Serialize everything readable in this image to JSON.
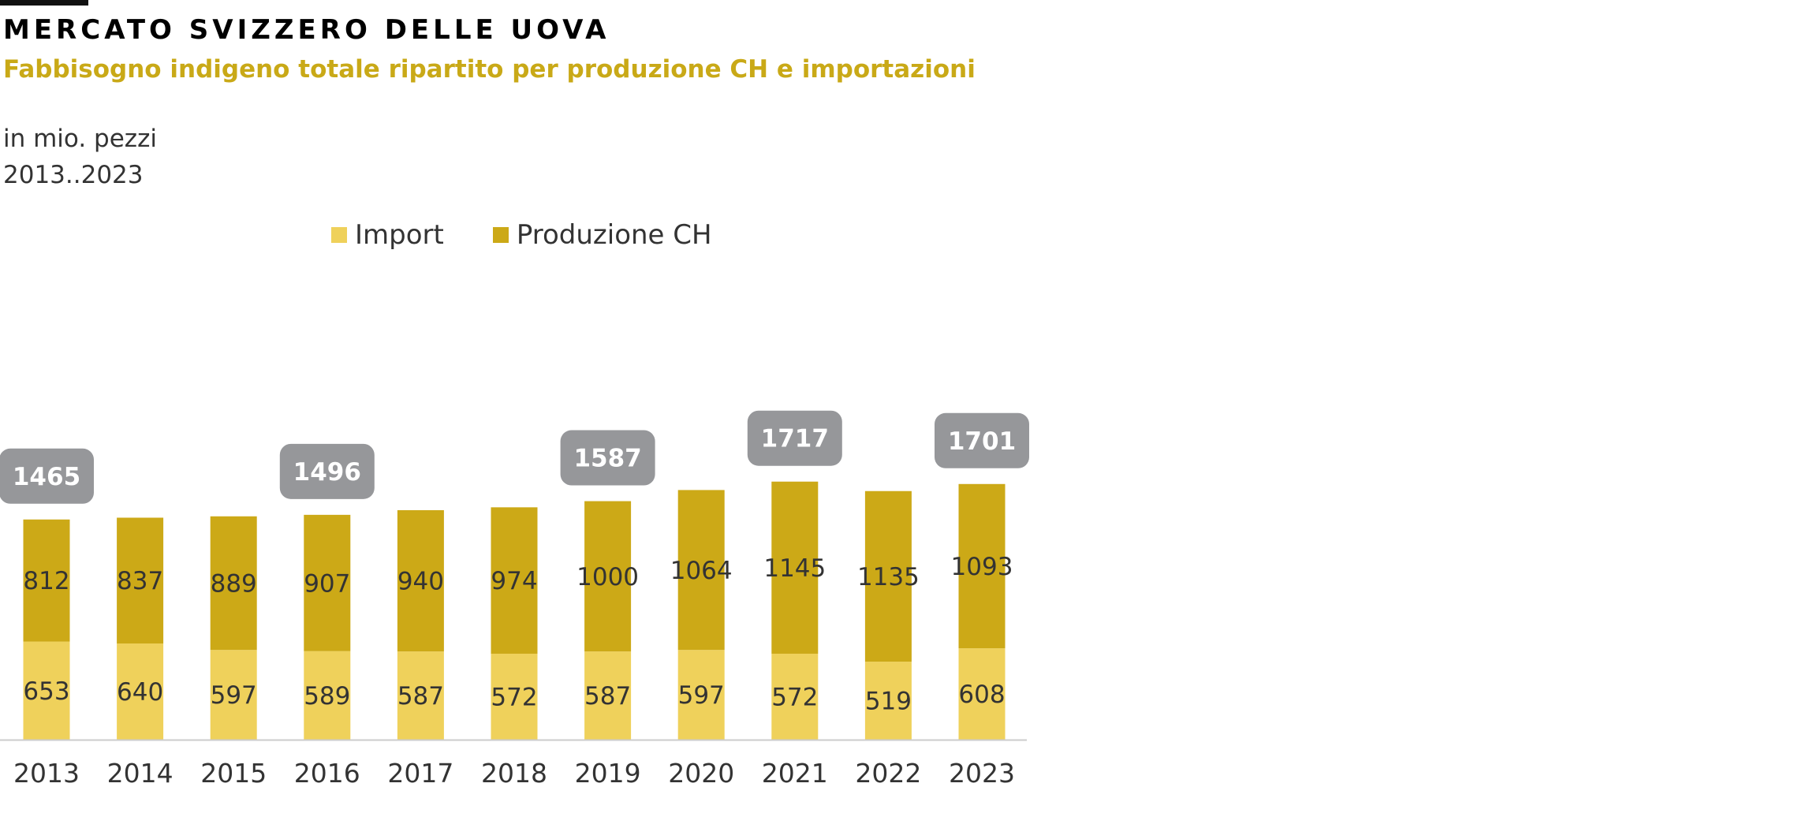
{
  "header": {
    "title": "MERCATO SVIZZERO DELLE UOVA",
    "subtitle": "Fabbisogno indigeno totale ripartito per produzione CH e importazioni",
    "unit": "in mio. pezzi",
    "period": "2013..2023"
  },
  "colors": {
    "import": "#efd15b",
    "produzione": "#cca917",
    "total_box": "#96979a",
    "axis": "#cccccc",
    "label_text": "#333333"
  },
  "chart_data": {
    "type": "bar",
    "stacked": true,
    "categories": [
      "2013",
      "2014",
      "2015",
      "2016",
      "2017",
      "2018",
      "2019",
      "2020",
      "2021",
      "2022",
      "2023"
    ],
    "series": [
      {
        "name": "Import",
        "values": [
          653,
          640,
          597,
          589,
          587,
          572,
          587,
          597,
          572,
          519,
          608
        ]
      },
      {
        "name": "Produzione CH",
        "values": [
          812,
          837,
          889,
          907,
          940,
          974,
          1000,
          1064,
          1145,
          1135,
          1093
        ]
      }
    ],
    "totals": [
      {
        "year": "2013",
        "value": "1465"
      },
      {
        "year": "2016",
        "value": "1496"
      },
      {
        "year": "2019",
        "value": "1587"
      },
      {
        "year": "2021",
        "value": "1717"
      },
      {
        "year": "2023",
        "value": "1701"
      }
    ],
    "ylim": [
      0,
      2000
    ],
    "grid": false,
    "legend_position": "top"
  }
}
